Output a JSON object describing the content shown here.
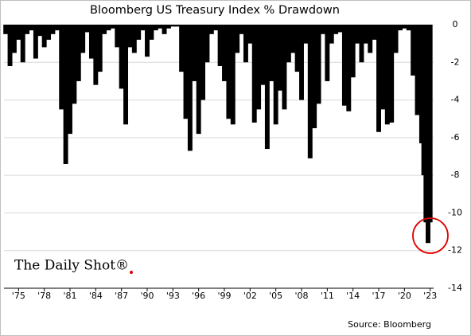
{
  "chart_data": {
    "type": "bar",
    "title": "Bloomberg US Treasury Index % Drawdown",
    "source": "Source: Bloomberg",
    "logo": "The Daily Shot®",
    "color": "#000000",
    "grid": true,
    "y_axis_side": "right",
    "x": [
      1973.5,
      1974,
      1974.5,
      1975,
      1975.5,
      1976,
      1976.5,
      1977,
      1977.5,
      1978,
      1978.5,
      1979,
      1979.5,
      1980,
      1980.5,
      1981,
      1981.5,
      1982,
      1982.5,
      1983,
      1983.5,
      1984,
      1984.5,
      1985,
      1985.5,
      1986,
      1986.5,
      1987,
      1987.5,
      1988,
      1988.5,
      1989,
      1989.5,
      1990,
      1990.5,
      1991,
      1991.5,
      1992,
      1992.5,
      1993,
      1993.5,
      1994,
      1994.5,
      1995,
      1995.5,
      1996,
      1996.5,
      1997,
      1997.5,
      1998,
      1998.5,
      1999,
      1999.5,
      2000,
      2000.5,
      2001,
      2001.5,
      2002,
      2002.5,
      2003,
      2003.5,
      2004,
      2004.5,
      2005,
      2005.5,
      2006,
      2006.5,
      2007,
      2007.5,
      2008,
      2008.5,
      2009,
      2009.5,
      2010,
      2010.5,
      2011,
      2011.5,
      2012,
      2012.5,
      2013,
      2013.5,
      2014,
      2014.5,
      2015,
      2015.5,
      2016,
      2016.5,
      2017,
      2017.5,
      2018,
      2018.5,
      2019,
      2019.5,
      2020,
      2020.5,
      2021,
      2021.5,
      2022,
      2022.25,
      2022.5,
      2022.75,
      2023
    ],
    "values": [
      -0.5,
      -2.2,
      -1.5,
      -0.8,
      -2.0,
      -0.5,
      -0.3,
      -1.8,
      -0.6,
      -1.2,
      -0.8,
      -0.5,
      -0.3,
      -4.5,
      -7.4,
      -5.8,
      -4.2,
      -3.0,
      -1.5,
      -0.4,
      -1.8,
      -3.2,
      -2.5,
      -0.5,
      -0.3,
      -0.2,
      -1.2,
      -3.4,
      -5.3,
      -1.2,
      -1.5,
      -0.8,
      -0.3,
      -1.7,
      -0.8,
      -0.3,
      -0.2,
      -0.5,
      -0.2,
      -0.1,
      -0.1,
      -2.5,
      -5.0,
      -6.7,
      -3.0,
      -5.8,
      -4.0,
      -2.0,
      -0.5,
      -0.3,
      -2.2,
      -3.0,
      -5.0,
      -5.3,
      -1.5,
      -0.5,
      -2.0,
      -1.0,
      -5.2,
      -4.5,
      -3.2,
      -6.6,
      -3.0,
      -5.3,
      -3.5,
      -4.5,
      -2.0,
      -1.5,
      -2.5,
      -4.0,
      -1.0,
      -7.1,
      -5.5,
      -4.2,
      -0.5,
      -3.0,
      -1.0,
      -0.5,
      -0.4,
      -4.3,
      -4.6,
      -2.8,
      -1.0,
      -2.0,
      -1.0,
      -1.5,
      -0.8,
      -5.7,
      -4.5,
      -5.3,
      -5.2,
      -1.5,
      -0.3,
      -0.2,
      -0.3,
      -2.7,
      -4.8,
      -6.3,
      -8.0,
      -10.5,
      -11.6,
      -10.5
    ],
    "xlim": [
      1973.3,
      2023.4
    ],
    "xticks": [
      {
        "value": 1975,
        "label": "'75"
      },
      {
        "value": 1978,
        "label": "'78"
      },
      {
        "value": 1981,
        "label": "'81"
      },
      {
        "value": 1984,
        "label": "'84"
      },
      {
        "value": 1987,
        "label": "'87"
      },
      {
        "value": 1990,
        "label": "'90"
      },
      {
        "value": 1993,
        "label": "'93"
      },
      {
        "value": 1996,
        "label": "'96"
      },
      {
        "value": 1999,
        "label": "'99"
      },
      {
        "value": 2002,
        "label": "'02"
      },
      {
        "value": 2005,
        "label": "'05"
      },
      {
        "value": 2008,
        "label": "'08"
      },
      {
        "value": 2011,
        "label": "'11"
      },
      {
        "value": 2014,
        "label": "'14"
      },
      {
        "value": 2017,
        "label": "'17"
      },
      {
        "value": 2020,
        "label": "'20"
      },
      {
        "value": 2023,
        "label": "'23"
      }
    ],
    "ylim": [
      -14,
      0
    ],
    "yticks": [
      0,
      -2,
      -4,
      -6,
      -8,
      -10,
      -12,
      -14
    ]
  }
}
